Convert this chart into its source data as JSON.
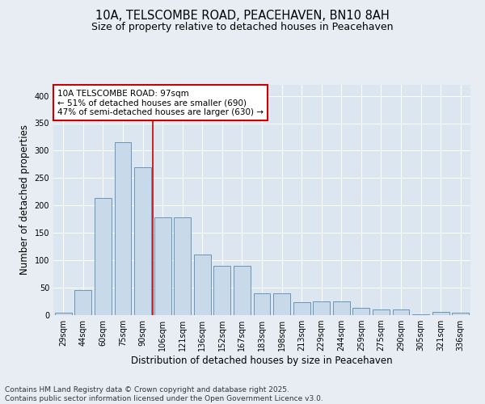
{
  "title1": "10A, TELSCOMBE ROAD, PEACEHAVEN, BN10 8AH",
  "title2": "Size of property relative to detached houses in Peacehaven",
  "xlabel": "Distribution of detached houses by size in Peacehaven",
  "ylabel": "Number of detached properties",
  "categories": [
    "29sqm",
    "44sqm",
    "60sqm",
    "75sqm",
    "90sqm",
    "106sqm",
    "121sqm",
    "136sqm",
    "152sqm",
    "167sqm",
    "183sqm",
    "198sqm",
    "213sqm",
    "229sqm",
    "244sqm",
    "259sqm",
    "275sqm",
    "290sqm",
    "305sqm",
    "321sqm",
    "336sqm"
  ],
  "values": [
    5,
    45,
    213,
    315,
    270,
    178,
    178,
    110,
    90,
    90,
    40,
    40,
    23,
    25,
    25,
    13,
    11,
    10,
    1,
    6,
    4
  ],
  "bar_color": "#c8daea",
  "bar_edge_color": "#5a8ab0",
  "vline_x": 4.5,
  "vline_color": "#cc0000",
  "annotation_text": "10A TELSCOMBE ROAD: 97sqm\n← 51% of detached houses are smaller (690)\n47% of semi-detached houses are larger (630) →",
  "annotation_box_color": "#ffffff",
  "annotation_box_edge": "#cc0000",
  "ylim": [
    0,
    420
  ],
  "yticks": [
    0,
    50,
    100,
    150,
    200,
    250,
    300,
    350,
    400
  ],
  "background_color": "#e8edf4",
  "plot_bg_color": "#dce6f0",
  "footer1": "Contains HM Land Registry data © Crown copyright and database right 2025.",
  "footer2": "Contains public sector information licensed under the Open Government Licence v3.0.",
  "title_fontsize": 10.5,
  "subtitle_fontsize": 9,
  "axis_label_fontsize": 8.5,
  "tick_fontsize": 7,
  "footer_fontsize": 6.5,
  "annotation_fontsize": 7.5
}
